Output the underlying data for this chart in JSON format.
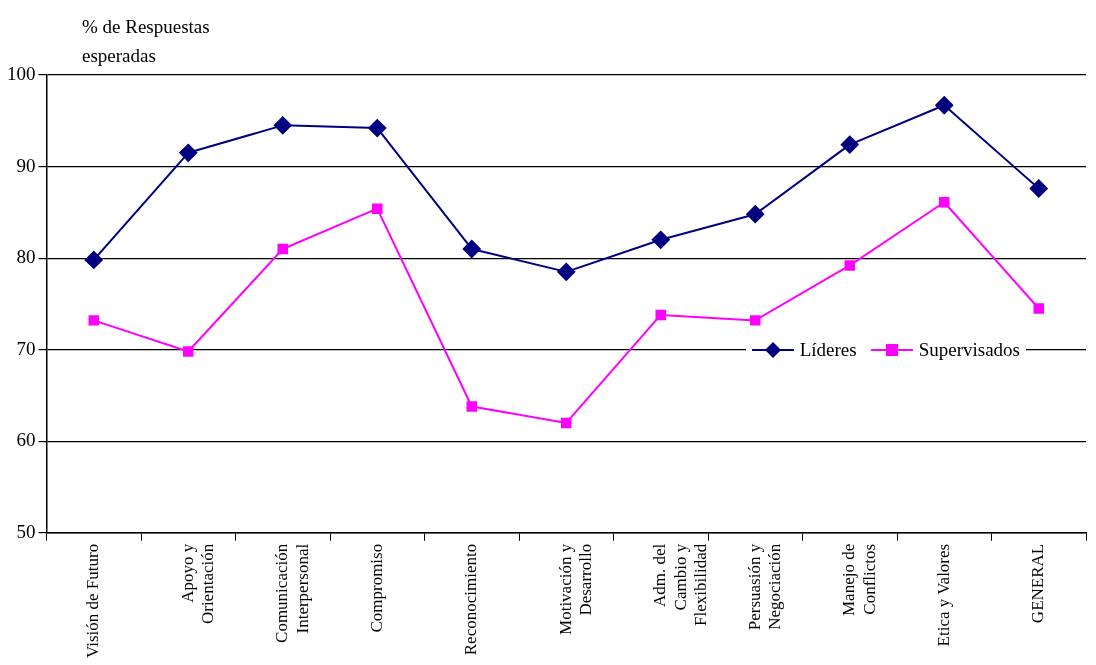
{
  "chart_data": {
    "type": "line",
    "ylabel": "% de Respuestas esperadas",
    "categories": [
      "Visión de Futuro",
      "Apoyo y\nOrientación",
      "Comunicación\nInterpersonal",
      "Compromiso",
      "Reconocimiento",
      "Motivación y\nDesarrollo",
      "Adm. del\nCambio y\nFlexibilidad",
      "Persuasión y\nNegociación",
      "Manejo de\nConflictos",
      "Etica y Valores",
      "GENERAL"
    ],
    "series": [
      {
        "name": "Líderes",
        "color": "#000080",
        "marker": "diamond",
        "values": [
          79.8,
          91.5,
          94.5,
          94.2,
          81.0,
          78.5,
          82.0,
          84.8,
          92.4,
          96.7,
          87.6
        ]
      },
      {
        "name": "Supervisados",
        "color": "#ff00ff",
        "marker": "square",
        "values": [
          73.2,
          69.8,
          81.0,
          85.4,
          63.8,
          62.0,
          73.8,
          73.2,
          79.2,
          86.1,
          74.5
        ]
      }
    ],
    "ylim": [
      50,
      100
    ],
    "yticks": [
      50,
      60,
      70,
      80,
      90,
      100
    ],
    "grid": "y",
    "legend": "right"
  }
}
